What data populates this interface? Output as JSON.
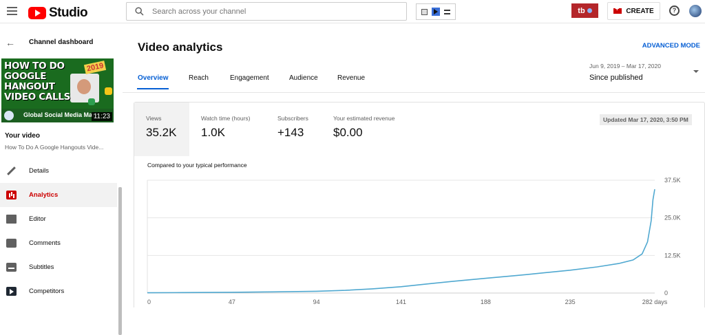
{
  "topbar": {
    "logo_text": "Studio",
    "search_placeholder": "Search across your channel",
    "tb_label": "tb",
    "create_label": "CREATE",
    "help_label": "?"
  },
  "sidebar": {
    "back_label": "Channel dashboard",
    "thumbnail": {
      "title_lines": [
        "HOW TO DO",
        "GOOGLE",
        "HANGOUT",
        "VIDEO CALLS"
      ],
      "year": "2019",
      "channel": "Global Social Media Mark",
      "duration": "11:23"
    },
    "your_video_label": "Your video",
    "video_title": "How To Do A Google Hangouts Vide...",
    "items": [
      {
        "label": "Details",
        "icon": "pencil-icon"
      },
      {
        "label": "Analytics",
        "icon": "analytics-icon",
        "active": true
      },
      {
        "label": "Editor",
        "icon": "film-icon"
      },
      {
        "label": "Comments",
        "icon": "comments-icon"
      },
      {
        "label": "Subtitles",
        "icon": "subtitles-icon"
      },
      {
        "label": "Competitors",
        "icon": "competitors-icon"
      }
    ]
  },
  "main": {
    "title": "Video analytics",
    "advanced_mode": "ADVANCED MODE",
    "tabs": [
      {
        "label": "Overview",
        "active": true
      },
      {
        "label": "Reach"
      },
      {
        "label": "Engagement"
      },
      {
        "label": "Audience"
      },
      {
        "label": "Revenue"
      }
    ],
    "date_range": "Jun 9, 2019 – Mar 17, 2020",
    "period": "Since published",
    "metrics": [
      {
        "label": "Views",
        "value": "35.2K"
      },
      {
        "label": "Watch time (hours)",
        "value": "1.0K"
      },
      {
        "label": "Subscribers",
        "value": "+143"
      },
      {
        "label": "Your estimated revenue",
        "value": "$0.00"
      }
    ],
    "updated": "Updated Mar 17, 2020, 3:50 PM",
    "compare_label": "Compared to your typical performance"
  },
  "chart_data": {
    "type": "line",
    "xlabel": "",
    "ylabel": "",
    "x_ticks": [
      "0",
      "47",
      "94",
      "141",
      "188",
      "235",
      "282 days"
    ],
    "x_tick_values": [
      0,
      47,
      94,
      141,
      188,
      235,
      282
    ],
    "y_ticks": [
      "0",
      "12.5K",
      "25.0K",
      "37.5K"
    ],
    "y_tick_values": [
      0,
      12500,
      25000,
      37500
    ],
    "xlim": [
      0,
      282
    ],
    "ylim": [
      0,
      37500
    ],
    "grid": true,
    "line_color": "#4fa8d0",
    "series": [
      {
        "x": [
          0,
          20,
          47,
          70,
          94,
          110,
          125,
          141,
          155,
          170,
          188,
          205,
          220,
          235,
          250,
          262,
          270,
          275,
          278,
          280,
          281,
          282
        ],
        "values": [
          100,
          150,
          250,
          400,
          600,
          900,
          1400,
          2100,
          3000,
          3900,
          4900,
          5800,
          6700,
          7600,
          8700,
          9800,
          11000,
          13000,
          17000,
          24000,
          31000,
          34500
        ]
      }
    ]
  }
}
